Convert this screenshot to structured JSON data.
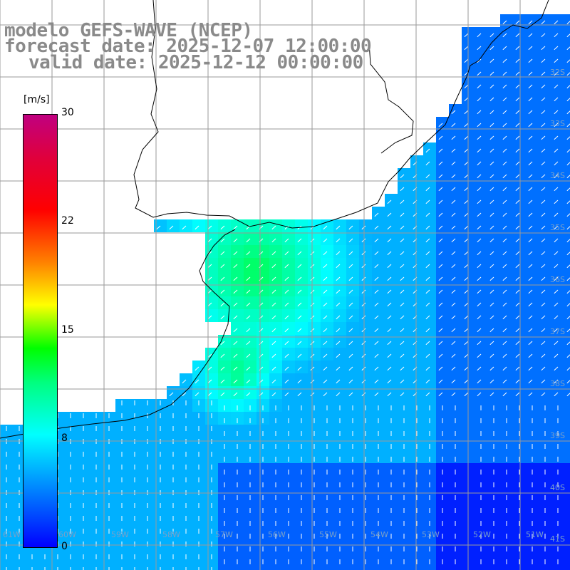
{
  "title": {
    "line1": "modelo GEFS-WAVE (NCEP)",
    "line2": "forecast date: 2025-12-07 12:00:00",
    "line3": "valid date: 2025-12-12 00:00:00"
  },
  "colorbar": {
    "unit": "[m/s]",
    "ticks": [
      "30",
      "22",
      "15",
      "8",
      "0"
    ],
    "tick_values": [
      30,
      22,
      15,
      8,
      0
    ],
    "min": 0,
    "max": 30
  },
  "lat_labels": [
    "32S",
    "33S",
    "34S",
    "35S",
    "36S",
    "37S",
    "38S",
    "39S",
    "40S",
    "41S"
  ],
  "lon_labels": [
    "61W",
    "60W",
    "59W",
    "58W",
    "57W",
    "56W",
    "55W",
    "54W",
    "53W",
    "52W",
    "51W"
  ],
  "colors": {
    "land": "#ffffff",
    "coast": "#000000",
    "grid": "#9a9a9a",
    "arrow": "#ffffff",
    "title_text": "#8a8a8a"
  }
}
